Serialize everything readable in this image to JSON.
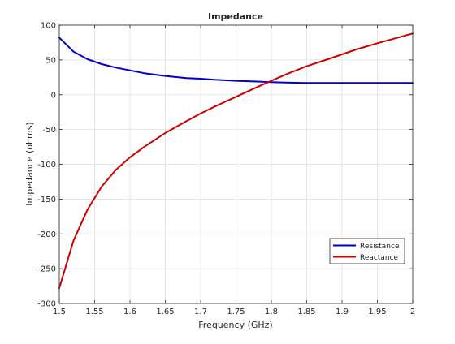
{
  "chart_data": {
    "type": "line",
    "title": "Impedance",
    "xlabel": "Frequency (GHz)",
    "ylabel": "Impedance (ohms)",
    "xlim": [
      1.5,
      2.0
    ],
    "ylim": [
      -300,
      100
    ],
    "xticks": [
      1.5,
      1.55,
      1.6,
      1.65,
      1.7,
      1.75,
      1.8,
      1.85,
      1.9,
      1.95,
      2.0
    ],
    "xtick_labels": [
      "1.5",
      "1.55",
      "1.6",
      "1.65",
      "1.7",
      "1.75",
      "1.8",
      "1.85",
      "1.9",
      "1.95",
      "2"
    ],
    "yticks": [
      -300,
      -250,
      -200,
      -150,
      -100,
      -50,
      0,
      50,
      100
    ],
    "ytick_labels": [
      "-300",
      "-250",
      "-200",
      "-150",
      "-100",
      "-50",
      "0",
      "50",
      "100"
    ],
    "grid": true,
    "legend_position": "bottom-right",
    "series": [
      {
        "name": "Resistance",
        "color": "#0000cc",
        "x": [
          1.5,
          1.52,
          1.54,
          1.56,
          1.58,
          1.6,
          1.62,
          1.65,
          1.68,
          1.7,
          1.72,
          1.75,
          1.78,
          1.8,
          1.82,
          1.85,
          1.9,
          1.95,
          2.0
        ],
        "y": [
          82,
          62,
          51,
          44,
          39,
          35,
          31,
          27,
          24,
          23,
          21.5,
          20,
          19,
          18,
          17.5,
          17,
          17,
          17,
          17
        ]
      },
      {
        "name": "Reactance",
        "color": "#cc0000",
        "x": [
          1.5,
          1.52,
          1.54,
          1.56,
          1.58,
          1.6,
          1.62,
          1.65,
          1.68,
          1.7,
          1.72,
          1.75,
          1.78,
          1.8,
          1.82,
          1.85,
          1.88,
          1.9,
          1.92,
          1.95,
          2.0
        ],
        "y": [
          -278,
          -210,
          -165,
          -132,
          -108,
          -90,
          -75,
          -55,
          -38,
          -27,
          -17,
          -3,
          11,
          20,
          29,
          41,
          51,
          58,
          65,
          74,
          88
        ]
      }
    ]
  }
}
